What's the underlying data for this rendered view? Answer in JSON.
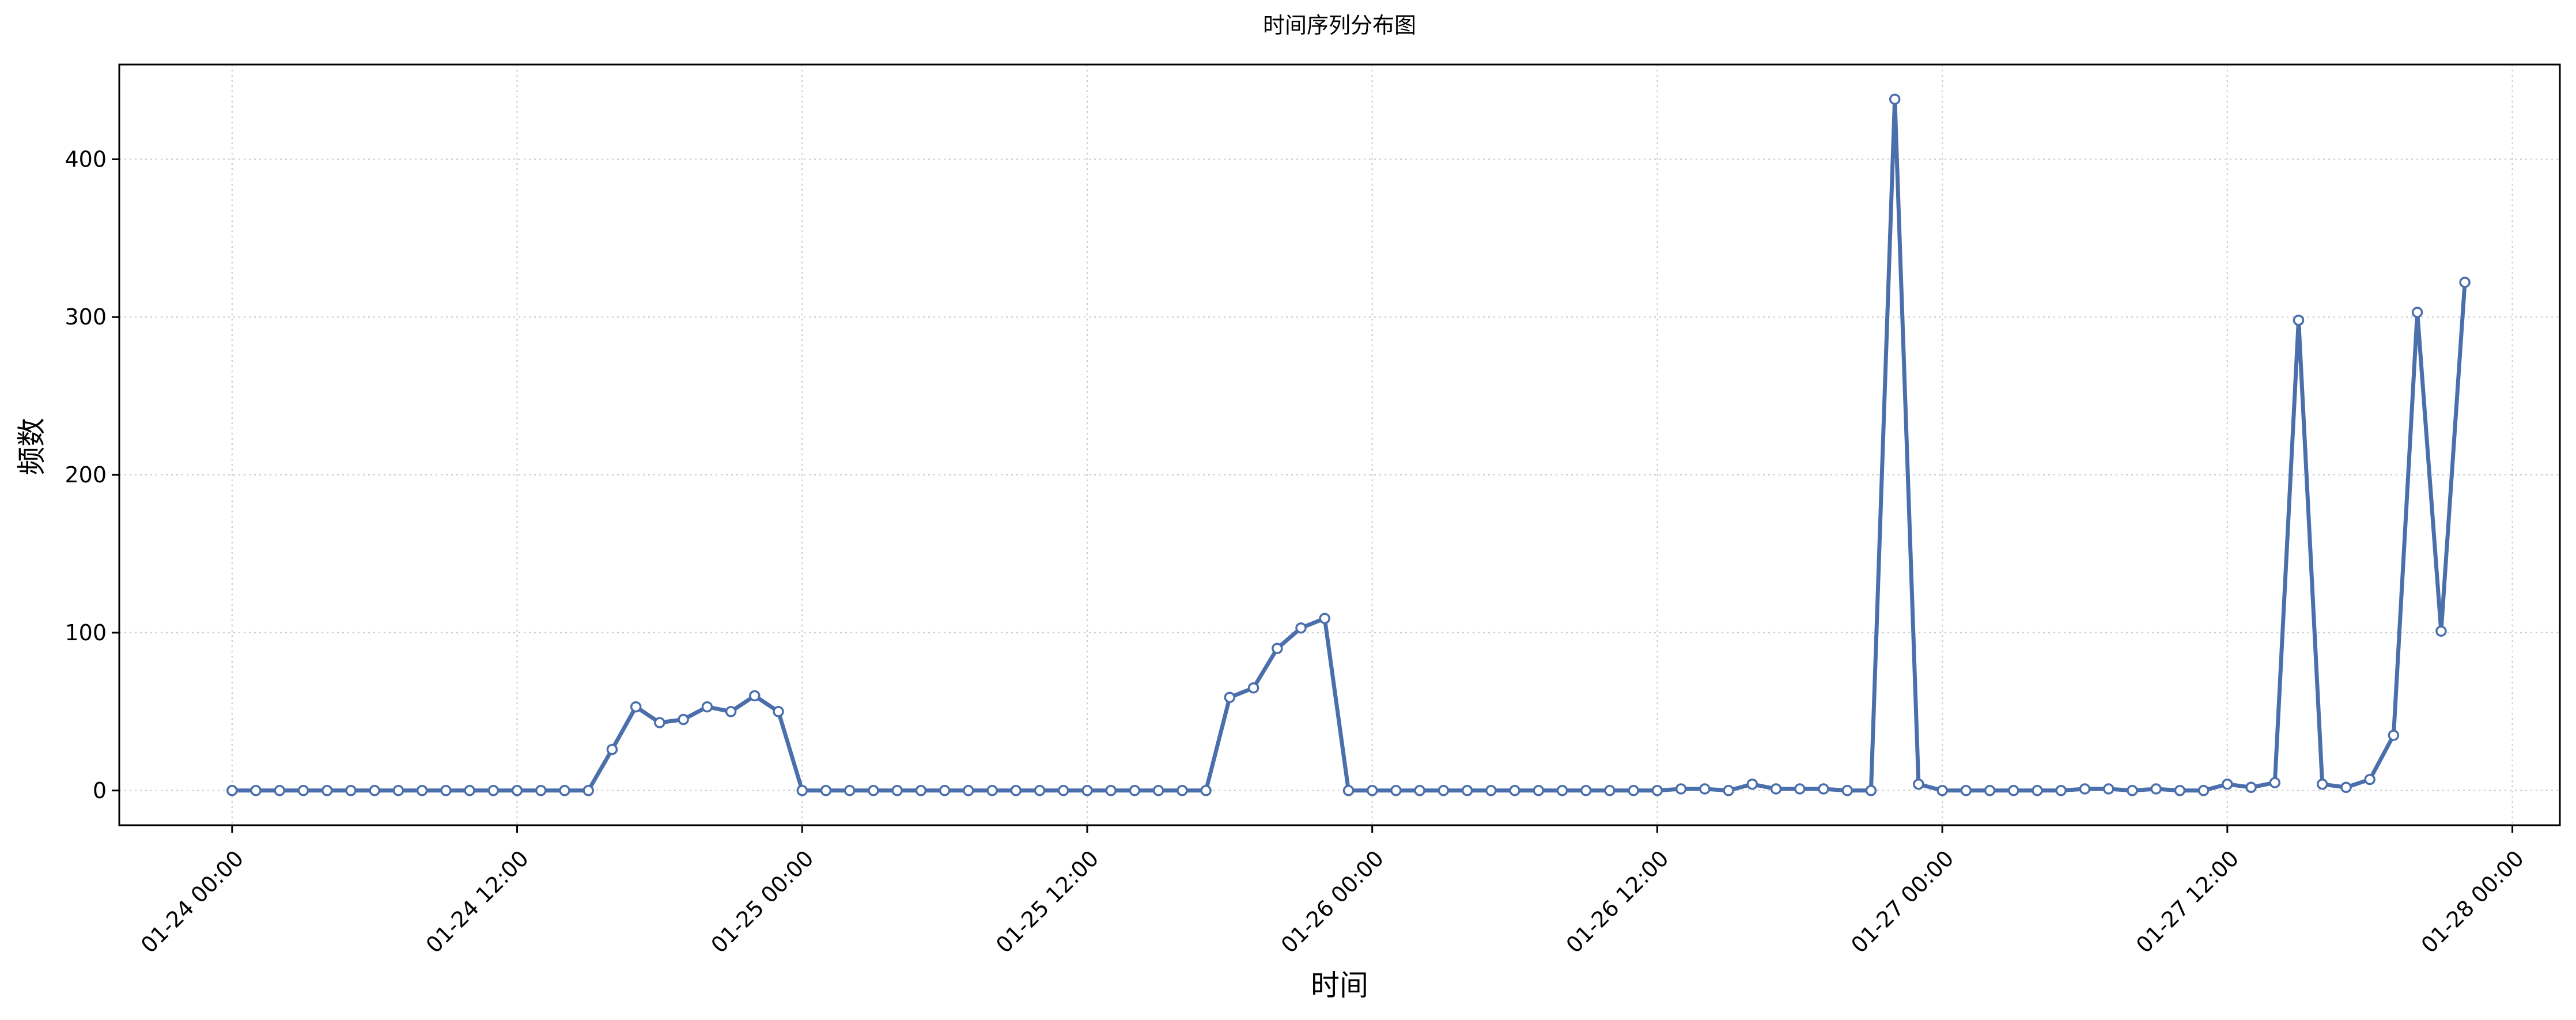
{
  "chart_data": {
    "type": "line",
    "title": "时间序列分布图",
    "xlabel": "时间",
    "ylabel": "频数",
    "x_start": "01-24 00:00",
    "x_interval_hours": 1,
    "x_ticks": [
      "01-24 00:00",
      "01-24 12:00",
      "01-25 00:00",
      "01-25 12:00",
      "01-26 00:00",
      "01-26 12:00",
      "01-27 00:00",
      "01-27 12:00",
      "01-28 00:00"
    ],
    "y_ticks": [
      0,
      100,
      200,
      300,
      400
    ],
    "xlim": [
      "01-23 19:15",
      "01-28 02:00"
    ],
    "ylim": [
      -22,
      460
    ],
    "grid": true,
    "series": [
      {
        "color": "#4a6fab",
        "values": [
          0,
          0,
          0,
          0,
          0,
          0,
          0,
          0,
          0,
          0,
          0,
          0,
          0,
          0,
          0,
          0,
          26,
          53,
          43,
          45,
          53,
          50,
          60,
          50,
          0,
          0,
          0,
          0,
          0,
          0,
          0,
          0,
          0,
          0,
          0,
          0,
          0,
          0,
          0,
          0,
          0,
          0,
          59,
          65,
          90,
          103,
          109,
          0,
          0,
          0,
          0,
          0,
          0,
          0,
          0,
          0,
          0,
          0,
          0,
          0,
          0,
          1,
          1,
          0,
          4,
          1,
          1,
          1,
          0,
          0,
          438,
          4,
          0,
          0,
          0,
          0,
          0,
          0,
          1,
          1,
          0,
          1,
          0,
          0,
          4,
          2,
          5,
          298,
          4,
          2,
          7,
          35,
          303,
          101,
          322
        ]
      }
    ]
  }
}
